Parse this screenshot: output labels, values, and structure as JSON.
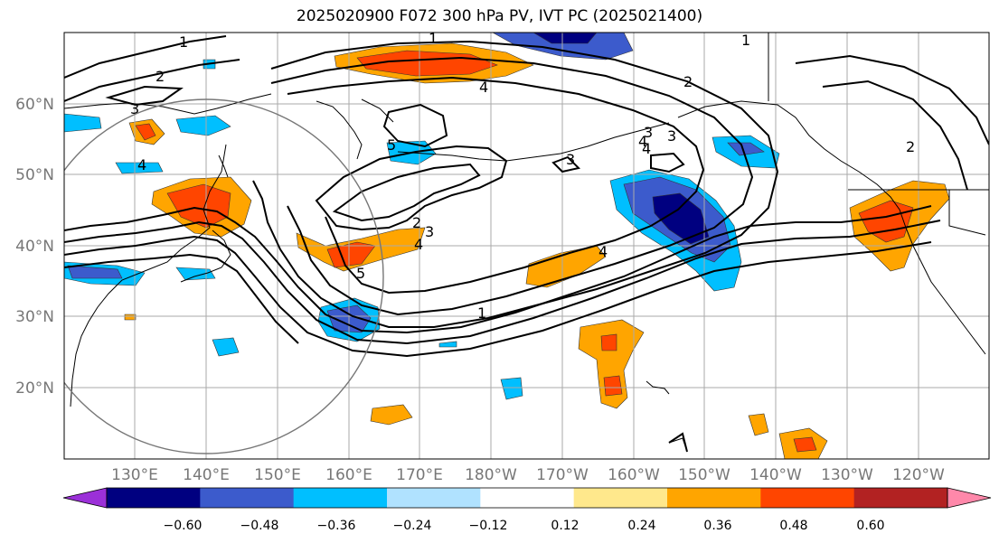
{
  "title": "2025020900 F072 300 hPa PV, IVT PC (2025021400)",
  "lon_labels": [
    "130°E",
    "140°E",
    "150°E",
    "160°E",
    "170°E",
    "180°W",
    "170°W",
    "160°W",
    "150°W",
    "140°W",
    "130°W",
    "120°W"
  ],
  "lat_labels": [
    "60°N",
    "50°N",
    "40°N",
    "30°N",
    "20°N"
  ],
  "colorbar": {
    "colors": [
      "#9b30d8",
      "#000080",
      "#3c5bcc",
      "#00bfff",
      "#b0e2ff",
      "#ffffff",
      "#ffe88c",
      "#ffa500",
      "#ff4500",
      "#b22222",
      "#ff88aa"
    ],
    "tick_labels": [
      "−0.60",
      "−0.48",
      "−0.36",
      "−0.24",
      "−0.12",
      "0.12",
      "0.24",
      "0.36",
      "0.48",
      "0.60"
    ]
  },
  "contour_labels": [
    "1",
    "2",
    "3",
    "4",
    "1",
    "2",
    "3",
    "4",
    "5",
    "3",
    "4",
    "2",
    "1",
    "4",
    "3",
    "4",
    "3",
    "2",
    "4",
    "5",
    "1"
  ],
  "colors": {
    "contour": "#000000",
    "circle": "#777777",
    "grid": "#aaaaaa",
    "tick_text": "#777777",
    "coast": "#000000"
  }
}
